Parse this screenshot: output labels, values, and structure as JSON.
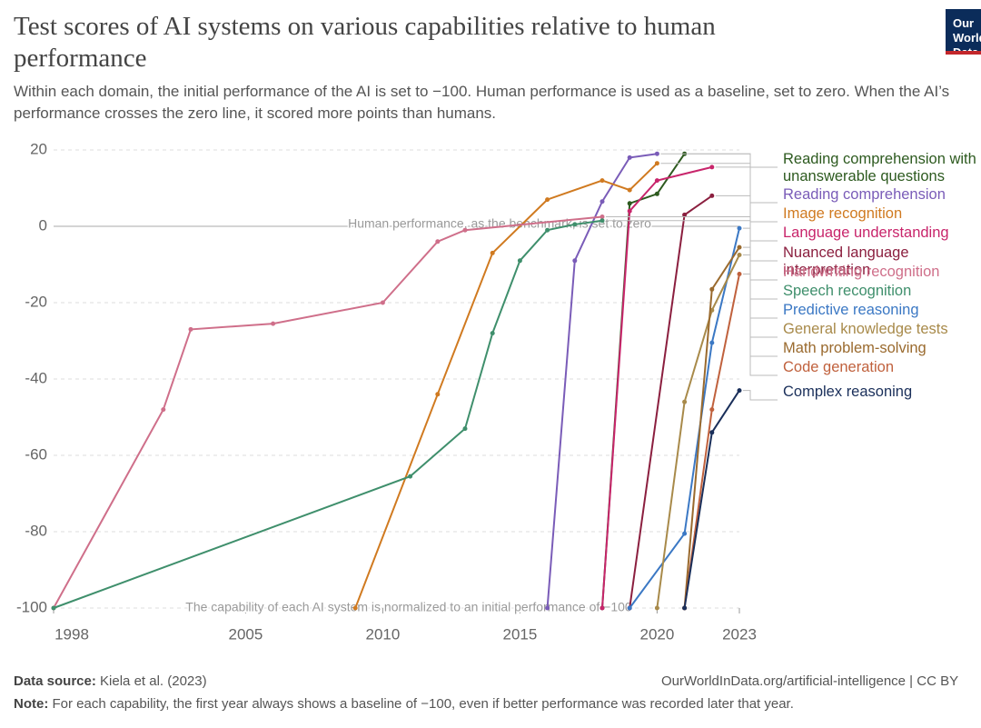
{
  "chart_data": {
    "type": "line",
    "title": "Test scores of AI systems on various capabilities relative to human performance",
    "subtitle": "Within each domain, the initial performance of the AI is set to −100. Human performance is used as a baseline, set to zero. When the AI’s performance crosses the zero line, it scored more points than humans.",
    "logo": "Our World in Data",
    "xlim": [
      1998,
      2023
    ],
    "xticks": [
      1998,
      2005,
      2010,
      2015,
      2020,
      2023
    ],
    "ylim": [
      -100,
      20
    ],
    "yticks": [
      -100,
      -80,
      -60,
      -40,
      -20,
      0,
      20
    ],
    "grid": true,
    "annotations": [
      "Human performance, as the benchmark, is set to zero",
      "The capability of each AI system is normalized to an initial performance of −100"
    ],
    "series": [
      {
        "name": "Reading comprehension with unanswerable questions",
        "color": "#2d5a1f",
        "x": [
          2018,
          2019,
          2020,
          2021
        ],
        "values": [
          -100,
          6,
          8.5,
          19
        ]
      },
      {
        "name": "Reading comprehension",
        "color": "#7a5cb8",
        "x": [
          2016,
          2017,
          2018,
          2019,
          2020
        ],
        "values": [
          -100,
          -9,
          6.5,
          18,
          19
        ]
      },
      {
        "name": "Image recognition",
        "color": "#d07a20",
        "x": [
          2009,
          2012,
          2014,
          2016,
          2018,
          2019,
          2020
        ],
        "values": [
          -100,
          -44,
          -7,
          7,
          12,
          9.5,
          16.5
        ]
      },
      {
        "name": "Language understanding",
        "color": "#c8256b",
        "x": [
          2018,
          2019,
          2020,
          2022
        ],
        "values": [
          -100,
          4,
          12,
          15.5
        ]
      },
      {
        "name": "Nuanced language interpretation",
        "color": "#8b1f3f",
        "x": [
          2019,
          2021,
          2022
        ],
        "values": [
          -100,
          3,
          8
        ]
      },
      {
        "name": "Handwriting recognition",
        "color": "#cf6f8a",
        "x": [
          1998,
          2002,
          2003,
          2006,
          2010,
          2012,
          2013,
          2018
        ],
        "values": [
          -100,
          -48,
          -27,
          -25.5,
          -20,
          -4,
          -1,
          2.5
        ]
      },
      {
        "name": "Speech recognition",
        "color": "#3f8f6c",
        "x": [
          1998,
          2011,
          2013,
          2014,
          2015,
          2016,
          2017,
          2018
        ],
        "values": [
          -100,
          -65.5,
          -53,
          -28,
          -9,
          -1,
          0.5,
          1.5
        ]
      },
      {
        "name": "Predictive reasoning",
        "color": "#3b78c4",
        "x": [
          2019,
          2021,
          2022,
          2023
        ],
        "values": [
          -100,
          -80.5,
          -30.5,
          -0.5
        ]
      },
      {
        "name": "General knowledge tests",
        "color": "#a88a4a",
        "x": [
          2020,
          2021,
          2022,
          2023
        ],
        "values": [
          -100,
          -46,
          -22,
          -7.5
        ]
      },
      {
        "name": "Math problem-solving",
        "color": "#9a6a2e",
        "x": [
          2021,
          2022,
          2023
        ],
        "values": [
          -100,
          -16.5,
          -5.5
        ]
      },
      {
        "name": "Code generation",
        "color": "#c0613d",
        "x": [
          2021,
          2022,
          2023
        ],
        "values": [
          -100,
          -48,
          -12.5
        ]
      },
      {
        "name": "Complex reasoning",
        "color": "#1a2f5a",
        "x": [
          2021,
          2022,
          2023
        ],
        "values": [
          -100,
          -54,
          -43
        ]
      }
    ],
    "source_label": "Data source:",
    "source": "Kiela et al. (2023)",
    "url": "OurWorldInData.org/artificial-intelligence | CC BY",
    "note_label": "Note:",
    "note": "For each capability, the first year always shows a baseline of −100, even if better performance was recorded later that year."
  }
}
